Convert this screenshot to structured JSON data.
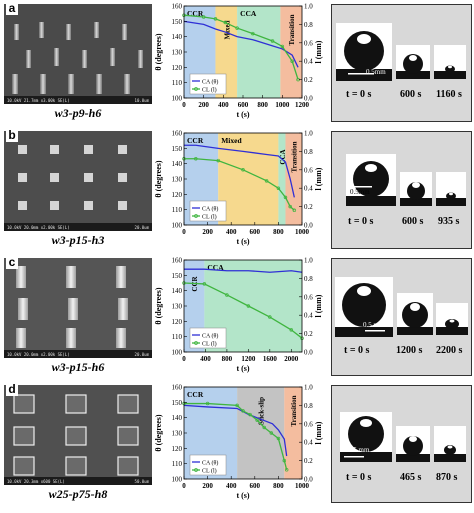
{
  "panels": [
    {
      "letter": "a",
      "sample": "w3-p9-h6",
      "sem_info": "10.0kV 21.7mm x3.00k SE(L)",
      "sem_scale": "10.0um",
      "drop_times": [
        "t = 0 s",
        "600 s",
        "1160 s"
      ],
      "scale_bar": "0.5mm",
      "chart_data": {
        "type": "line",
        "xlabel": "t (s)",
        "ylabel": "θ (degrees)",
        "y2label": "l (mm)",
        "xlim": [
          0,
          1200
        ],
        "ylim": [
          100,
          160
        ],
        "y2lim": [
          0,
          1.0
        ],
        "xticks": [
          "0",
          "200",
          "400",
          "600",
          "800",
          "1000",
          "1200"
        ],
        "yticks": [
          "100",
          "110",
          "120",
          "130",
          "140",
          "150",
          "160"
        ],
        "y2ticks": [
          "0.0",
          "0.2",
          "0.4",
          "0.6",
          "0.8",
          "1.0"
        ],
        "regions": [
          {
            "label": "CCR",
            "x0": 0,
            "x1": 320,
            "color": "#a8c8ea"
          },
          {
            "label": "Mixed",
            "x0": 320,
            "x1": 540,
            "color": "#f4d27a"
          },
          {
            "label": "CCA",
            "x0": 540,
            "x1": 980,
            "color": "#a6e0bf"
          },
          {
            "label": "Transition",
            "x0": 980,
            "x1": 1200,
            "color": "#f2b28e"
          }
        ],
        "legend": [
          "CA (θ)",
          "CL (l)"
        ],
        "legend_position": "bottom-left",
        "series": [
          {
            "name": "CA (θ)",
            "axis": "left",
            "color": "#2f2fd6",
            "x": [
              0,
              200,
              320,
              420,
              540,
              700,
              900,
              1000,
              1100,
              1160
            ],
            "y": [
              150,
              148,
              145,
              143,
              140,
              138,
              134,
              132,
              128,
              120
            ]
          },
          {
            "name": "CL (l)",
            "axis": "right",
            "color": "#3fb53f",
            "x": [
              0,
              200,
              320,
              420,
              540,
              700,
              900,
              1000,
              1100,
              1160
            ],
            "y": [
              0.9,
              0.88,
              0.86,
              0.82,
              0.76,
              0.7,
              0.62,
              0.56,
              0.4,
              0.2
            ]
          }
        ]
      }
    },
    {
      "letter": "b",
      "sample": "w3-p15-h3",
      "sem_info": "10.0kV 20.0mm x2.00k SE(L)",
      "sem_scale": "20.0um",
      "drop_times": [
        "t = 0 s",
        "600 s",
        "935 s"
      ],
      "scale_bar": "0.5mm",
      "chart_data": {
        "type": "line",
        "xlabel": "t (s)",
        "ylabel": "θ (degrees)",
        "y2label": "l (mm)",
        "xlim": [
          0,
          1000
        ],
        "ylim": [
          100,
          160
        ],
        "y2lim": [
          0,
          1.0
        ],
        "xticks": [
          "0",
          "200",
          "400",
          "600",
          "800",
          "1000"
        ],
        "yticks": [
          "100",
          "110",
          "120",
          "130",
          "140",
          "150",
          "160"
        ],
        "y2ticks": [
          "0.0",
          "0.2",
          "0.4",
          "0.6",
          "0.8",
          "1.0"
        ],
        "regions": [
          {
            "label": "CCR",
            "x0": 0,
            "x1": 290,
            "color": "#a8c8ea"
          },
          {
            "label": "Mixed",
            "x0": 290,
            "x1": 800,
            "color": "#f4d27a"
          },
          {
            "label": "CCA",
            "x0": 800,
            "x1": 860,
            "color": "#a6e0bf"
          },
          {
            "label": "Transition",
            "x0": 860,
            "x1": 1000,
            "color": "#f2b28e"
          }
        ],
        "legend": [
          "CA (θ)",
          "CL (l)"
        ],
        "legend_position": "bottom-left",
        "series": [
          {
            "name": "CA (θ)",
            "axis": "left",
            "color": "#2f2fd6",
            "x": [
              0,
              100,
              290,
              500,
              700,
              800,
              860,
              900,
              935
            ],
            "y": [
              152,
              152,
              150,
              148,
              146,
              145,
              141,
              130,
              118
            ]
          },
          {
            "name": "CL (l)",
            "axis": "right",
            "color": "#3fb53f",
            "x": [
              0,
              100,
              290,
              500,
              700,
              800,
              860,
              900,
              935
            ],
            "y": [
              0.72,
              0.72,
              0.7,
              0.6,
              0.48,
              0.4,
              0.3,
              0.2,
              0.16
            ]
          }
        ]
      }
    },
    {
      "letter": "c",
      "sample": "w3-p15-h6",
      "sem_info": "10.0kV 20.0mm x2.00k SE(L)",
      "sem_scale": "20.0um",
      "drop_times": [
        "t = 0 s",
        "1200 s",
        "2200 s"
      ],
      "scale_bar": "0.5 mm",
      "chart_data": {
        "type": "line",
        "xlabel": "t (s)",
        "ylabel": "θ (degrees)",
        "y2label": "l (mm)",
        "xlim": [
          0,
          2200
        ],
        "ylim": [
          100,
          160
        ],
        "y2lim": [
          0,
          1.0
        ],
        "xticks": [
          "0",
          "400",
          "800",
          "1200",
          "1600",
          "2000"
        ],
        "yticks": [
          "100",
          "110",
          "120",
          "130",
          "140",
          "150",
          "160"
        ],
        "y2ticks": [
          "0.0",
          "0.2",
          "0.4",
          "0.6",
          "0.8",
          "1.0"
        ],
        "regions": [
          {
            "label": "CCR",
            "x0": 0,
            "x1": 380,
            "color": "#a8c8ea"
          },
          {
            "label": "CCA",
            "x0": 380,
            "x1": 2200,
            "color": "#a6e0bf"
          }
        ],
        "legend": [
          "CA (θ)",
          "CL (l)"
        ],
        "legend_position": "bottom-left",
        "series": [
          {
            "name": "CA (θ)",
            "axis": "left",
            "color": "#2f2fd6",
            "x": [
              0,
              380,
              800,
              1200,
              1600,
              2000,
              2200
            ],
            "y": [
              154,
              154,
              153,
              153,
              152,
              153,
              152
            ]
          },
          {
            "name": "CL (l)",
            "axis": "right",
            "color": "#3fb53f",
            "x": [
              0,
              380,
              800,
              1200,
              1600,
              2000,
              2200
            ],
            "y": [
              0.75,
              0.74,
              0.62,
              0.5,
              0.38,
              0.24,
              0.15
            ]
          }
        ]
      }
    },
    {
      "letter": "d",
      "sample": "w25-p75-h8",
      "sem_info": "10.0kV 20.3mm x600 SE(L)",
      "sem_scale": "50.0um",
      "drop_times": [
        "t = 0 s",
        "465 s",
        "870 s"
      ],
      "scale_bar": "0.5 mm",
      "chart_data": {
        "type": "line",
        "xlabel": "t (s)",
        "ylabel": "θ (degrees)",
        "y2label": "l (mm)",
        "xlim": [
          0,
          1000
        ],
        "ylim": [
          100,
          160
        ],
        "y2lim": [
          0,
          1.0
        ],
        "xticks": [
          "0",
          "200",
          "400",
          "600",
          "800",
          "1000"
        ],
        "yticks": [
          "100",
          "110",
          "120",
          "130",
          "140",
          "150",
          "160"
        ],
        "y2ticks": [
          "0.0",
          "0.2",
          "0.4",
          "0.6",
          "0.8",
          "1.0"
        ],
        "regions": [
          {
            "label": "CCR",
            "x0": 0,
            "x1": 450,
            "color": "#a8c8ea"
          },
          {
            "label": "Stick-slip",
            "x0": 450,
            "x1": 850,
            "color": "#b9b9b9"
          },
          {
            "label": "Transition",
            "x0": 850,
            "x1": 1000,
            "color": "#f2b28e"
          }
        ],
        "legend": [
          "CA (θ)",
          "CL (l)"
        ],
        "legend_position": "bottom-left",
        "series": [
          {
            "name": "CA (θ)",
            "axis": "left",
            "color": "#2f2fd6",
            "x": [
              0,
              200,
              450,
              550,
              650,
              750,
              800,
              850,
              870
            ],
            "y": [
              148,
              147,
              146,
              142,
              139,
              136,
              132,
              126,
              115
            ]
          },
          {
            "name": "CL (l)",
            "axis": "right",
            "color": "#3fb53f",
            "x": [
              0,
              200,
              450,
              500,
              560,
              620,
              680,
              740,
              800,
              850,
              870
            ],
            "y": [
              0.82,
              0.82,
              0.8,
              0.74,
              0.7,
              0.64,
              0.56,
              0.5,
              0.44,
              0.2,
              0.1
            ]
          }
        ]
      }
    }
  ]
}
